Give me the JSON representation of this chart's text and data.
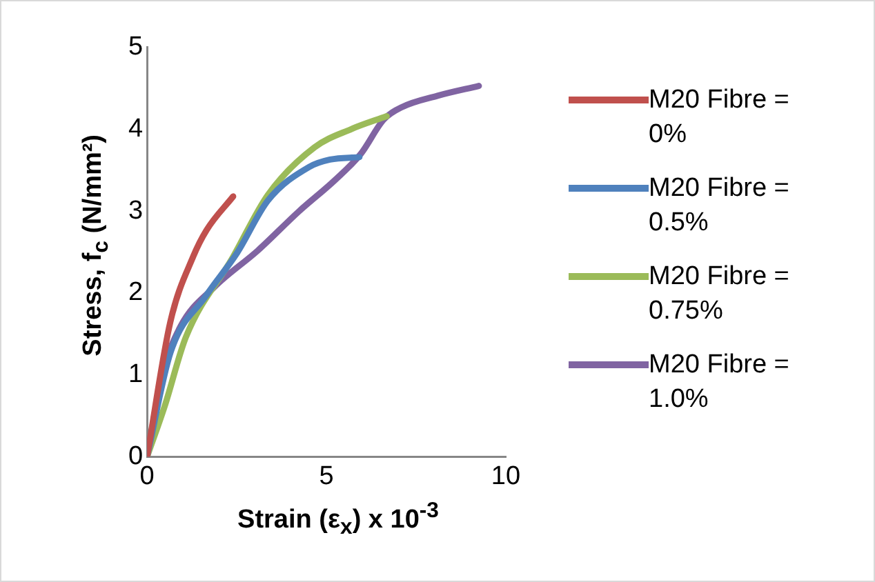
{
  "chart_data": {
    "type": "line",
    "xlabel": "Strain (ε$_{x}$) x 10$^{-3}$",
    "ylabel": "Stress, f$_{c}$ (N/mm²)",
    "xlim": [
      0,
      10
    ],
    "xticks": [
      0,
      5,
      10
    ],
    "ylim": [
      0,
      5
    ],
    "yticks": [
      0,
      1,
      2,
      3,
      4,
      5
    ],
    "grid": false,
    "legend": "right",
    "marker": "none",
    "series": [
      {
        "name": "M20 Fibre = 0%",
        "color": "#c0504d",
        "x": [
          0,
          0.65,
          1.29,
          1.66,
          2.4
        ],
        "values": [
          0,
          1.65,
          2.45,
          2.77,
          3.18
        ]
      },
      {
        "name": "M20 Fibre = 0.5%",
        "color": "#4f81bd",
        "x": [
          0,
          0.65,
          1.65,
          2.51,
          3.37,
          4.52,
          5.1,
          5.92
        ],
        "values": [
          0,
          1.27,
          1.97,
          2.49,
          3.13,
          3.54,
          3.63,
          3.66
        ]
      },
      {
        "name": "M20 Fibre = 0.75%",
        "color": "#9bbb59",
        "x": [
          0,
          0.5,
          1.08,
          2.37,
          3.37,
          4.67,
          5.68,
          6.68
        ],
        "values": [
          0,
          0.63,
          1.46,
          2.42,
          3.2,
          3.78,
          4.0,
          4.16
        ]
      },
      {
        "name": "M20 Fibre = 1.0%",
        "color": "#8064a2",
        "x": [
          0,
          0.43,
          0.93,
          1.87,
          3.09,
          4.24,
          5.24,
          5.96,
          6.6,
          7.1,
          8.1,
          9.25
        ],
        "values": [
          0,
          1.01,
          1.59,
          2.07,
          2.52,
          3.0,
          3.38,
          3.7,
          4.12,
          4.27,
          4.41,
          4.53
        ]
      }
    ]
  }
}
